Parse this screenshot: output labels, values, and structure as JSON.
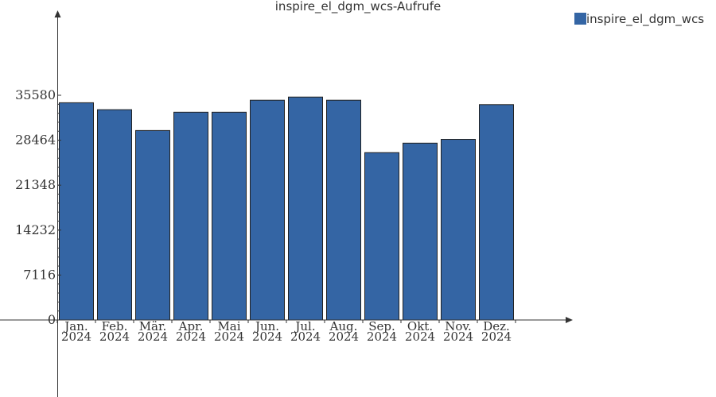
{
  "chart_data": {
    "type": "bar",
    "title": "inspire_el_dgm_wcs-Aufrufe",
    "categories": [
      [
        "Jan.",
        "2024"
      ],
      [
        "Feb.",
        "2024"
      ],
      [
        "Mär.",
        "2024"
      ],
      [
        "Apr.",
        "2024"
      ],
      [
        "Mai",
        "2024"
      ],
      [
        "Jun.",
        "2024"
      ],
      [
        "Jul.",
        "2024"
      ],
      [
        "Aug.",
        "2024"
      ],
      [
        "Sep.",
        "2024"
      ],
      [
        "Okt.",
        "2024"
      ],
      [
        "Nov.",
        "2024"
      ],
      [
        "Dez.",
        "2024"
      ]
    ],
    "series": [
      {
        "name": "inspire_el_dgm_wcs",
        "color": "#3465a4",
        "values": [
          34400,
          33300,
          30000,
          32900,
          32900,
          34800,
          35300,
          34800,
          26500,
          28000,
          28600,
          34100
        ]
      }
    ],
    "yticks": [
      0,
      7116,
      14232,
      21348,
      28464,
      35580
    ],
    "ylim": [
      0,
      35580
    ],
    "xlabel": "",
    "ylabel": "",
    "legend_position": "top-right",
    "grid": false
  }
}
